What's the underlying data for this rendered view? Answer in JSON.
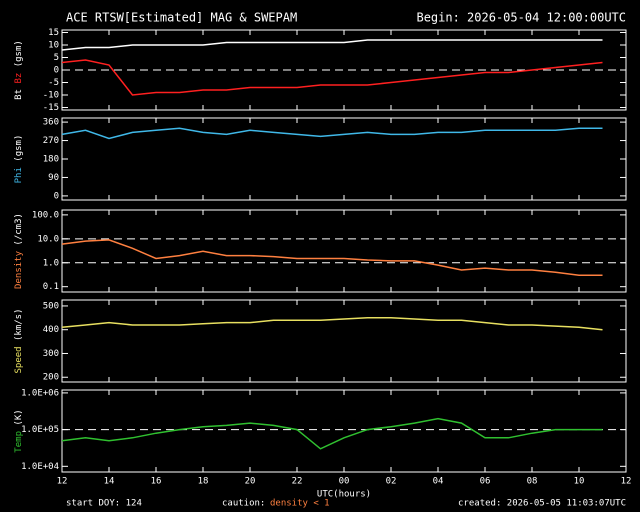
{
  "header": {
    "title": "ACE RTSW[Estimated] MAG & SWEPAM",
    "begin": "Begin: 2026-05-04 12:00:00UTC"
  },
  "footer": {
    "doy": "start DOY: 124",
    "caution": "caution:",
    "density_note": "density < 1",
    "created": "created: 2026-05-05 11:03:07UTC"
  },
  "chart_data": [
    {
      "type": "line",
      "ylabel": "(gsm)",
      "ylim": [
        -16,
        16
      ],
      "yticks": [
        15,
        10,
        5,
        0,
        -5,
        -10,
        -15
      ],
      "hlines": [
        0
      ],
      "x": [
        12,
        13,
        14,
        15,
        16,
        17,
        18,
        19,
        20,
        21,
        22,
        23,
        24,
        25,
        26,
        27,
        28,
        29,
        30,
        31,
        32,
        33,
        34,
        35
      ],
      "xlim": [
        12,
        36
      ],
      "series": [
        {
          "name": "Bt",
          "color": "#ffffff",
          "values": [
            8,
            9,
            9,
            10,
            10,
            10,
            10,
            11,
            11,
            11,
            11,
            11,
            11,
            12,
            12,
            12,
            12,
            12,
            12,
            12,
            12,
            12,
            12,
            12
          ]
        },
        {
          "name": "Bz",
          "color": "#ff2020",
          "values": [
            3,
            4,
            2,
            -10,
            -9,
            -9,
            -8,
            -8,
            -7,
            -7,
            -7,
            -6,
            -6,
            -6,
            -5,
            -4,
            -3,
            -2,
            -1,
            -1,
            0,
            1,
            2,
            3
          ]
        }
      ]
    },
    {
      "type": "line",
      "ylabel": "(gsm)",
      "ylim": [
        -20,
        380
      ],
      "yticks": [
        360,
        270,
        180,
        90,
        0
      ],
      "x": [
        12,
        13,
        14,
        15,
        16,
        17,
        18,
        19,
        20,
        21,
        22,
        23,
        24,
        25,
        26,
        27,
        28,
        29,
        30,
        31,
        32,
        33,
        34,
        35
      ],
      "xlim": [
        12,
        36
      ],
      "series": [
        {
          "name": "Phi",
          "color": "#40b8e8",
          "values": [
            300,
            320,
            280,
            310,
            320,
            330,
            310,
            300,
            320,
            310,
            300,
            290,
            300,
            310,
            300,
            300,
            310,
            310,
            320,
            320,
            320,
            320,
            330,
            330
          ]
        }
      ]
    },
    {
      "type": "line",
      "log": true,
      "ylabel": "(/cm3)",
      "ylim": [
        0.06,
        160
      ],
      "yticks": [
        {
          "value": 100,
          "label": "100.0"
        },
        {
          "value": 10,
          "label": "10.0"
        },
        {
          "value": 1,
          "label": "1.0"
        },
        0.1
      ],
      "hlines": [
        10,
        1
      ],
      "x": [
        12,
        13,
        14,
        15,
        16,
        17,
        18,
        19,
        20,
        21,
        22,
        23,
        24,
        25,
        26,
        27,
        28,
        29,
        30,
        31,
        32,
        33,
        34,
        35
      ],
      "xlim": [
        12,
        36
      ],
      "series": [
        {
          "name": "Density",
          "color": "#ff8040",
          "values": [
            6,
            8,
            9,
            4,
            1.5,
            2,
            3,
            2,
            2,
            1.8,
            1.5,
            1.5,
            1.5,
            1.3,
            1.2,
            1.2,
            0.8,
            0.5,
            0.6,
            0.5,
            0.5,
            0.4,
            0.3,
            0.3
          ]
        }
      ]
    },
    {
      "type": "line",
      "ylabel": "(km/s)",
      "ylim": [
        180,
        525
      ],
      "yticks": [
        500,
        400,
        300,
        200
      ],
      "x": [
        12,
        13,
        14,
        15,
        16,
        17,
        18,
        19,
        20,
        21,
        22,
        23,
        24,
        25,
        26,
        27,
        28,
        29,
        30,
        31,
        32,
        33,
        34,
        35
      ],
      "xlim": [
        12,
        36
      ],
      "series": [
        {
          "name": "Speed",
          "color": "#e8e060",
          "values": [
            410,
            420,
            430,
            420,
            420,
            420,
            425,
            430,
            430,
            440,
            440,
            440,
            445,
            450,
            450,
            445,
            440,
            440,
            430,
            420,
            420,
            415,
            410,
            400
          ]
        }
      ]
    },
    {
      "type": "line",
      "log": true,
      "ylabel": "(K)",
      "ylim": [
        7000,
        1200000
      ],
      "yticks": [
        {
          "value": 1000000,
          "label": "1.0E+06"
        },
        {
          "value": 100000,
          "label": "1.0E+05"
        },
        {
          "value": 10000,
          "label": "1.0E+04"
        }
      ],
      "hlines": [
        100000
      ],
      "x": [
        12,
        13,
        14,
        15,
        16,
        17,
        18,
        19,
        20,
        21,
        22,
        23,
        24,
        25,
        26,
        27,
        28,
        29,
        30,
        31,
        32,
        33,
        34,
        35
      ],
      "xlim": [
        12,
        36
      ],
      "xticks": [
        12,
        14,
        16,
        18,
        20,
        22,
        {
          "value": 24,
          "label": "00"
        },
        {
          "value": 26,
          "label": "02"
        },
        {
          "value": 28,
          "label": "04"
        },
        {
          "value": 30,
          "label": "06"
        },
        {
          "value": 32,
          "label": "08"
        },
        {
          "value": 34,
          "label": "10"
        },
        {
          "value": 36,
          "label": "12"
        }
      ],
      "xlabel": "UTC(hours)",
      "series": [
        {
          "name": "Temp",
          "color": "#30c030",
          "values": [
            50000,
            60000,
            50000,
            60000,
            80000,
            100000,
            120000,
            130000,
            150000,
            130000,
            100000,
            30000,
            60000,
            100000,
            120000,
            150000,
            200000,
            150000,
            60000,
            60000,
            80000,
            100000,
            100000,
            100000
          ]
        }
      ]
    }
  ]
}
